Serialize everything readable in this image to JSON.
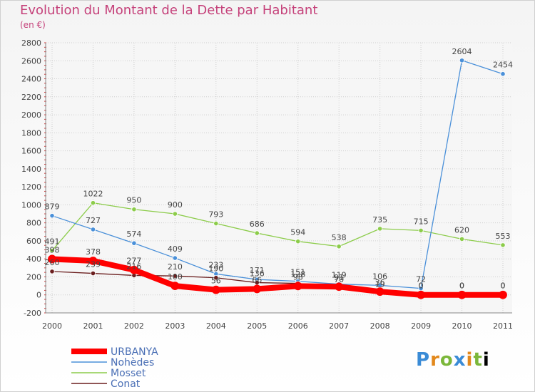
{
  "header": {
    "title": "Evolution du Montant de la Dette par Habitant",
    "subtitle": "(en €)"
  },
  "logo": {
    "text": "Proxiti"
  },
  "chart_data": {
    "type": "line",
    "title": "Evolution du Montant de la Dette par Habitant",
    "subtitle": "(en €)",
    "xlabel": "",
    "ylabel": "",
    "categories": [
      "2000",
      "2001",
      "2002",
      "2003",
      "2004",
      "2005",
      "2006",
      "2007",
      "2008",
      "2009",
      "2010",
      "2011"
    ],
    "ylim": [
      -200,
      2800
    ],
    "yticks": [
      -200,
      0,
      200,
      400,
      600,
      800,
      1000,
      1200,
      1400,
      1600,
      1800,
      2000,
      2200,
      2400,
      2600,
      2800
    ],
    "grid": true,
    "legend_position": "bottom-left",
    "series": [
      {
        "name": "URBANYA",
        "color": "#ff0000",
        "emphasis": true,
        "values": [
          398,
          378,
          277,
          100,
          56,
          66,
          98,
          91,
          36,
          0,
          0,
          0
        ]
      },
      {
        "name": "Nohèdes",
        "color": "#4a90d9",
        "values": [
          879,
          727,
          574,
          409,
          233,
          171,
          151,
          119,
          106,
          72,
          2604,
          2454
        ]
      },
      {
        "name": "Mosset",
        "color": "#8ccc4a",
        "values": [
          491,
          1022,
          950,
          900,
          793,
          686,
          594,
          538,
          735,
          715,
          620,
          553
        ]
      },
      {
        "name": "Conat",
        "color": "#6b1f1f",
        "values": [
          260,
          239,
          216,
          210,
          190,
          136,
          128,
          70,
          19,
          0,
          0,
          0
        ]
      }
    ]
  }
}
